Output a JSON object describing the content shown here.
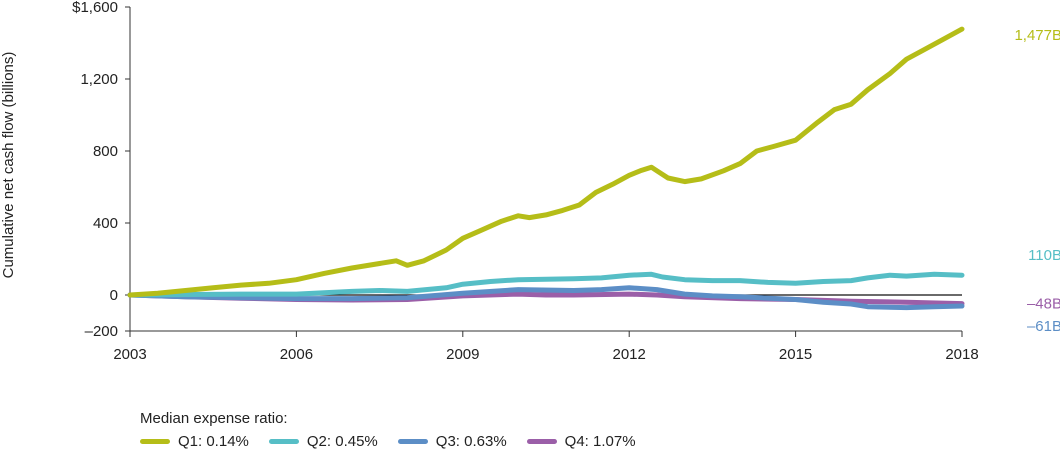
{
  "chart_data": {
    "type": "line",
    "title": "",
    "xlabel": "",
    "ylabel": "Cumulative net cash flow  (billions)",
    "xlim": [
      2003,
      2018
    ],
    "ylim": [
      -200,
      1600
    ],
    "x_ticks": [
      2003,
      2006,
      2009,
      2012,
      2015,
      2018
    ],
    "x_tick_labels": [
      "2003",
      "2006",
      "2009",
      "2012",
      "2015",
      "2018"
    ],
    "y_ticks": [
      -200,
      0,
      400,
      800,
      1200,
      1600
    ],
    "y_tick_labels": [
      "–200",
      "0",
      "400",
      "800",
      "1,200",
      "$1,600"
    ],
    "legend_title": "Median expense ratio:",
    "legend_position": "bottom-left",
    "series": [
      {
        "name": "Q1: 0.14%",
        "color": "#b5bd18",
        "end_label": "1,477B",
        "points": [
          [
            2003,
            0
          ],
          [
            2003.5,
            10
          ],
          [
            2004,
            25
          ],
          [
            2004.5,
            40
          ],
          [
            2005,
            55
          ],
          [
            2005.5,
            65
          ],
          [
            2006,
            85
          ],
          [
            2006.5,
            120
          ],
          [
            2007,
            150
          ],
          [
            2007.5,
            175
          ],
          [
            2007.8,
            190
          ],
          [
            2008,
            165
          ],
          [
            2008.3,
            190
          ],
          [
            2008.7,
            250
          ],
          [
            2009,
            315
          ],
          [
            2009.3,
            355
          ],
          [
            2009.7,
            410
          ],
          [
            2010,
            440
          ],
          [
            2010.2,
            430
          ],
          [
            2010.5,
            445
          ],
          [
            2010.8,
            470
          ],
          [
            2011.1,
            500
          ],
          [
            2011.4,
            570
          ],
          [
            2011.7,
            615
          ],
          [
            2012,
            665
          ],
          [
            2012.2,
            690
          ],
          [
            2012.4,
            710
          ],
          [
            2012.5,
            690
          ],
          [
            2012.7,
            650
          ],
          [
            2013,
            630
          ],
          [
            2013.3,
            645
          ],
          [
            2013.7,
            690
          ],
          [
            2014,
            730
          ],
          [
            2014.3,
            800
          ],
          [
            2014.6,
            825
          ],
          [
            2015,
            860
          ],
          [
            2015.4,
            960
          ],
          [
            2015.7,
            1030
          ],
          [
            2016,
            1060
          ],
          [
            2016.3,
            1140
          ],
          [
            2016.7,
            1230
          ],
          [
            2017,
            1310
          ],
          [
            2017.3,
            1360
          ],
          [
            2017.6,
            1410
          ],
          [
            2018,
            1477
          ]
        ]
      },
      {
        "name": "Q2: 0.45%",
        "color": "#56bec6",
        "end_label": "110B",
        "points": [
          [
            2003,
            0
          ],
          [
            2005,
            5
          ],
          [
            2006,
            5
          ],
          [
            2007,
            20
          ],
          [
            2007.5,
            25
          ],
          [
            2008,
            20
          ],
          [
            2008.7,
            40
          ],
          [
            2009,
            60
          ],
          [
            2009.5,
            75
          ],
          [
            2010,
            85
          ],
          [
            2011,
            90
          ],
          [
            2011.5,
            95
          ],
          [
            2012,
            110
          ],
          [
            2012.4,
            115
          ],
          [
            2012.6,
            100
          ],
          [
            2013,
            85
          ],
          [
            2013.5,
            80
          ],
          [
            2014,
            80
          ],
          [
            2014.5,
            70
          ],
          [
            2015,
            65
          ],
          [
            2015.5,
            75
          ],
          [
            2016,
            80
          ],
          [
            2016.3,
            95
          ],
          [
            2016.7,
            110
          ],
          [
            2017,
            105
          ],
          [
            2017.5,
            115
          ],
          [
            2018,
            110
          ]
        ]
      },
      {
        "name": "Q3: 0.63%",
        "color": "#5c8ec6",
        "end_label": "–61B",
        "points": [
          [
            2003,
            0
          ],
          [
            2004,
            -10
          ],
          [
            2005,
            -15
          ],
          [
            2006,
            -20
          ],
          [
            2007,
            -20
          ],
          [
            2008,
            -15
          ],
          [
            2009,
            10
          ],
          [
            2010,
            30
          ],
          [
            2011,
            25
          ],
          [
            2011.5,
            30
          ],
          [
            2012,
            40
          ],
          [
            2012.5,
            30
          ],
          [
            2013,
            5
          ],
          [
            2013.5,
            -5
          ],
          [
            2014,
            -10
          ],
          [
            2015,
            -25
          ],
          [
            2015.5,
            -40
          ],
          [
            2016,
            -50
          ],
          [
            2016.3,
            -65
          ],
          [
            2017,
            -70
          ],
          [
            2017.5,
            -65
          ],
          [
            2018,
            -61
          ]
        ]
      },
      {
        "name": "Q4: 1.07%",
        "color": "#9b5fa8",
        "end_label": "–48B",
        "points": [
          [
            2003,
            0
          ],
          [
            2004,
            -10
          ],
          [
            2005,
            -18
          ],
          [
            2006,
            -25
          ],
          [
            2007,
            -28
          ],
          [
            2008,
            -25
          ],
          [
            2009,
            -5
          ],
          [
            2010,
            5
          ],
          [
            2010.5,
            0
          ],
          [
            2011,
            0
          ],
          [
            2012,
            5
          ],
          [
            2012.5,
            0
          ],
          [
            2013,
            -10
          ],
          [
            2014,
            -20
          ],
          [
            2015,
            -25
          ],
          [
            2016,
            -35
          ],
          [
            2017,
            -40
          ],
          [
            2018,
            -48
          ]
        ]
      }
    ]
  }
}
